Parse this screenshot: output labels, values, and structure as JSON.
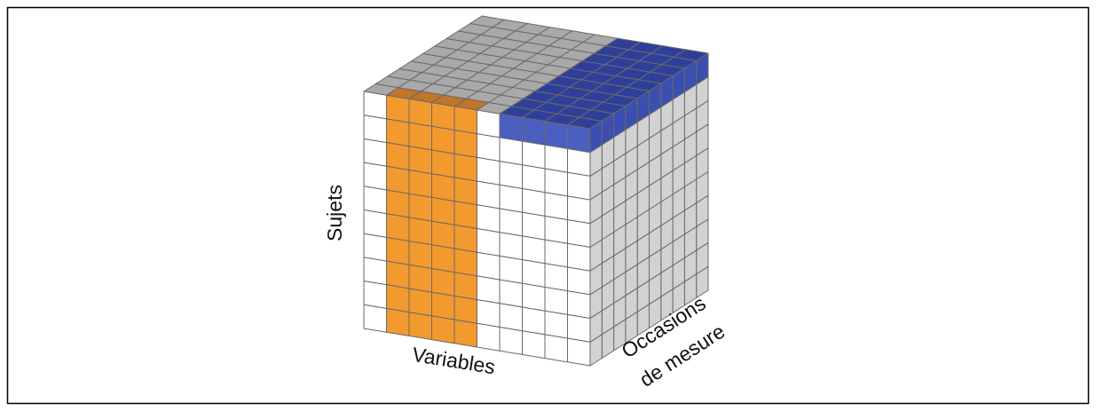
{
  "axes": {
    "subjects": "Sujets",
    "variables": "Variables",
    "occasions_line1": "Occasions",
    "occasions_line2": "de mesure"
  }
}
